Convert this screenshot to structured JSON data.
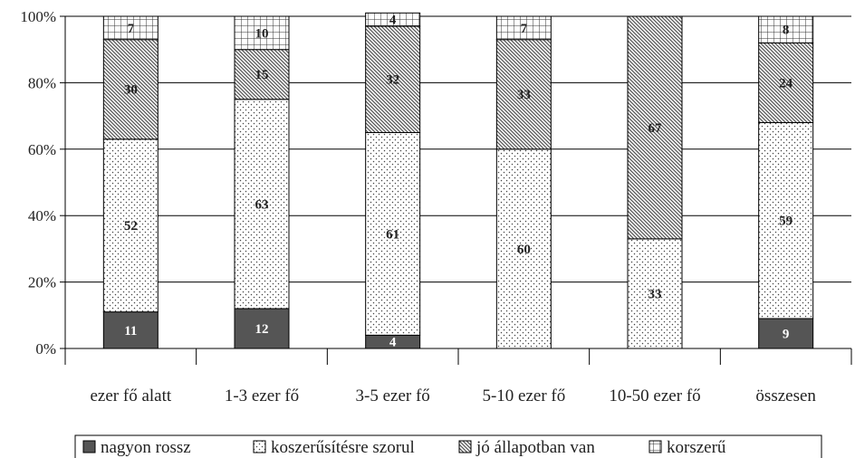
{
  "chart_data": {
    "type": "bar",
    "stacked": true,
    "percent": true,
    "categories": [
      "ezer fő alatt",
      "1-3 ezer fő",
      "3-5 ezer fő",
      "5-10 ezer fő",
      "10-50 ezer fő",
      "összesen"
    ],
    "series": [
      {
        "name": "nagyon rossz",
        "values": [
          11,
          12,
          4,
          0,
          0,
          9
        ],
        "color": "#555555",
        "pattern": "solid"
      },
      {
        "name": "koszerűsítésre szorul",
        "values": [
          52,
          63,
          61,
          60,
          33,
          59
        ],
        "color": "#ffffff",
        "pattern": "dots"
      },
      {
        "name": "jó állapotban van",
        "values": [
          30,
          15,
          32,
          33,
          67,
          24
        ],
        "color": "#ffffff",
        "pattern": "diagonal"
      },
      {
        "name": "korszerű",
        "values": [
          7,
          10,
          4,
          7,
          0,
          8
        ],
        "color": "#ffffff",
        "pattern": "grid"
      }
    ],
    "y_ticks": [
      "0%",
      "20%",
      "40%",
      "60%",
      "80%",
      "100%"
    ],
    "ylim": [
      0,
      100
    ],
    "grid": true,
    "legend": "bottom"
  }
}
